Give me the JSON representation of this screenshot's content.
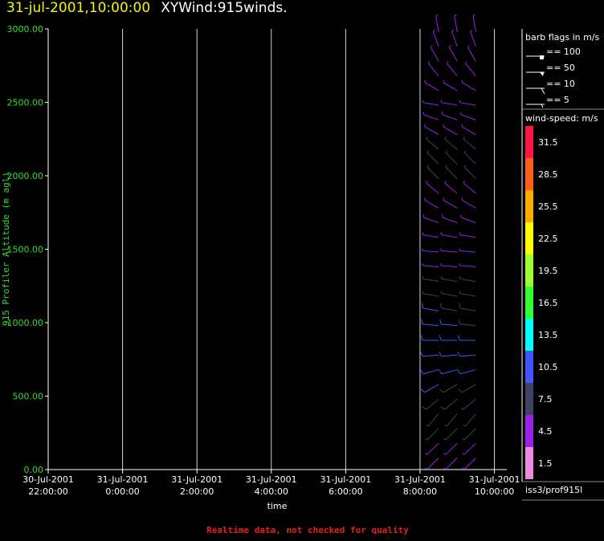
{
  "header": {
    "date_label": "31-jul-2001,10:00:00",
    "title": "XYWind:915winds."
  },
  "footer": {
    "note": "Realtime data, not checked for quality"
  },
  "legend": {
    "barb_title": "barb flags in m/s",
    "barb_flags": [
      "== 100",
      "== 50",
      "== 10",
      "== 5"
    ],
    "speed_title": "wind-speed: m/s",
    "station": "iss3/prof915l",
    "colorbar": [
      {
        "label": "31.5",
        "color": "#ff1744"
      },
      {
        "label": "28.5",
        "color": "#ff5e1a"
      },
      {
        "label": "25.5",
        "color": "#ffaa00"
      },
      {
        "label": "22.5",
        "color": "#ffff00"
      },
      {
        "label": "19.5",
        "color": "#9cff33"
      },
      {
        "label": "16.5",
        "color": "#33ff33"
      },
      {
        "label": "13.5",
        "color": "#00ffff"
      },
      {
        "label": "10.5",
        "color": "#4455ff"
      },
      {
        "label": "7.5",
        "color": "#404060"
      },
      {
        "label": "4.5",
        "color": "#9b1fe8"
      },
      {
        "label": "1.5",
        "color": "#ee88dd"
      }
    ]
  },
  "chart_data": {
    "type": "scatter",
    "title": "XYWind:915winds.",
    "xlabel": "time",
    "ylabel": "915 Profiler Altitude (m agl)",
    "xlim": [
      "2001-07-30 22:00",
      "2001-07-31 10:20"
    ],
    "ylim": [
      0,
      3000
    ],
    "x_ticks": [
      {
        "line1": "30-Jul-2001",
        "line2": "22:00:00",
        "time": "2001-07-30 22:00"
      },
      {
        "line1": "31-Jul-2001",
        "line2": "0:00:00",
        "time": "2001-07-31 00:00"
      },
      {
        "line1": "31-Jul-2001",
        "line2": "2:00:00",
        "time": "2001-07-31 02:00"
      },
      {
        "line1": "31-Jul-2001",
        "line2": "4:00:00",
        "time": "2001-07-31 04:00"
      },
      {
        "line1": "31-Jul-2001",
        "line2": "6:00:00",
        "time": "2001-07-31 06:00"
      },
      {
        "line1": "31-Jul-2001",
        "line2": "8:00:00",
        "time": "2001-07-31 08:00"
      },
      {
        "line1": "31-Jul-2001",
        "line2": "10:00:00",
        "time": "2001-07-31 10:00"
      }
    ],
    "y_ticks": [
      "0.00",
      "500.00",
      "1000.00",
      "1500.00",
      "2000.00",
      "2500.00",
      "3000.00"
    ],
    "grid": "vertical",
    "profile_times": [
      "2001-07-31 08:30",
      "2001-07-31 09:00",
      "2001-07-31 09:30"
    ],
    "altitudes": [
      80,
      180,
      280,
      380,
      480,
      580,
      680,
      780,
      880,
      980,
      1080,
      1180,
      1280,
      1380,
      1480,
      1580,
      1680,
      1780,
      1880,
      1980,
      2080,
      2180,
      2280,
      2380,
      2480,
      2580,
      2680,
      2780,
      2880,
      2980
    ],
    "wind_speed_ms": [
      [
        4,
        5,
        6,
        7,
        8,
        9,
        10,
        11,
        11,
        10,
        9,
        7,
        6,
        5,
        5,
        4,
        4,
        5,
        5,
        6,
        6,
        6,
        5,
        5,
        5,
        5,
        4,
        4,
        4,
        4
      ],
      [
        4,
        5,
        6,
        7,
        8,
        8,
        9,
        10,
        10,
        9,
        8,
        7,
        6,
        5,
        5,
        4,
        4,
        5,
        5,
        6,
        6,
        6,
        5,
        5,
        5,
        5,
        4,
        4,
        4,
        4
      ],
      [
        4,
        5,
        6,
        7,
        7,
        8,
        9,
        9,
        9,
        8,
        8,
        7,
        6,
        5,
        5,
        4,
        4,
        5,
        5,
        6,
        6,
        6,
        5,
        5,
        5,
        5,
        4,
        4,
        4,
        4
      ]
    ],
    "wind_dir_deg": [
      [
        225,
        225,
        225,
        220,
        230,
        240,
        255,
        265,
        270,
        275,
        280,
        280,
        280,
        275,
        275,
        280,
        290,
        300,
        310,
        315,
        315,
        310,
        300,
        290,
        280,
        300,
        320,
        330,
        340,
        350
      ],
      [
        225,
        225,
        225,
        220,
        230,
        240,
        255,
        265,
        270,
        275,
        280,
        280,
        280,
        275,
        275,
        280,
        290,
        300,
        310,
        315,
        315,
        310,
        300,
        290,
        280,
        300,
        320,
        330,
        340,
        350
      ],
      [
        225,
        225,
        225,
        220,
        230,
        240,
        255,
        265,
        270,
        275,
        280,
        280,
        280,
        275,
        275,
        280,
        290,
        300,
        310,
        315,
        315,
        310,
        300,
        290,
        280,
        300,
        320,
        330,
        340,
        350
      ]
    ]
  }
}
